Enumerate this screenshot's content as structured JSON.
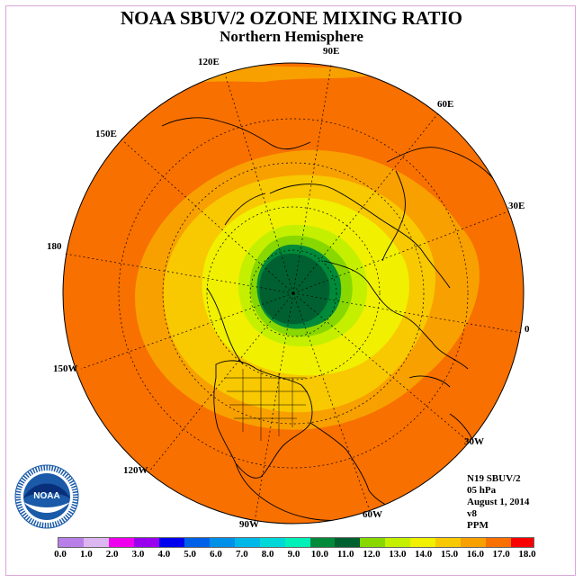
{
  "title": "NOAA SBUV/2 OZONE MIXING RATIO",
  "subtitle": "Northern Hemisphere",
  "logo": {
    "text": "NOAA",
    "ring_text": "NATIONAL OCEANIC AND ATMOSPHERIC ADMINISTRATION · U.S. DEPARTMENT OF COMMERCE"
  },
  "longitude_labels": {
    "lon_90E": "90E",
    "lon_60E": "60E",
    "lon_30E": "30E",
    "lon_0": "0",
    "lon_30W": "30W",
    "lon_60W": "60W",
    "lon_90W": "90W",
    "lon_120W": "120W",
    "lon_150W": "150W",
    "lon_180": "180",
    "lon_150E": "150E",
    "lon_120E": "120E"
  },
  "info": {
    "instrument": "N19 SBUV/2",
    "level": "05 hPa",
    "date": "August 1, 2014",
    "version": "v8",
    "units": "PPM"
  },
  "colorbar": {
    "colors": [
      "#b87fe8",
      "#dcb6f0",
      "#ee00ee",
      "#9800ee",
      "#0000ee",
      "#0060e8",
      "#0090e8",
      "#00b8e8",
      "#00d8d8",
      "#00f0b8",
      "#008a3a",
      "#006030",
      "#88d800",
      "#c4f000",
      "#f0f000",
      "#f8c800",
      "#f8a000",
      "#f87000",
      "#f80000",
      "#c00000",
      "#885030"
    ],
    "tick_labels": [
      "0.0",
      "1.0",
      "2.0",
      "3.0",
      "4.0",
      "5.0",
      "6.0",
      "7.0",
      "8.0",
      "9.0",
      "10.0",
      "11.0",
      "12.0",
      "13.0",
      "14.0",
      "15.0",
      "16.0",
      "17.0",
      "18.0"
    ]
  },
  "fill_colors": {
    "outer": "#f87000",
    "band_15": "#f8a000",
    "band_14": "#f8c800",
    "band_13": "#f0f000",
    "band_12": "#c4f000",
    "band_11": "#88d800",
    "band_10": "#008a3a",
    "core": "#006030"
  }
}
